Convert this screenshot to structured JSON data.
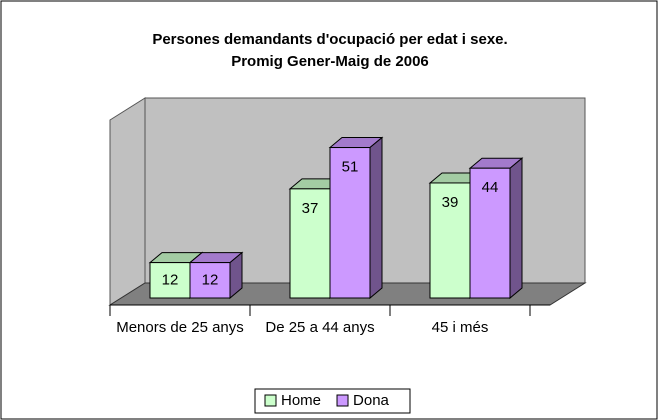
{
  "chart_data": {
    "type": "bar3d",
    "title": "Persones demandants d'ocupació per edat i sexe.",
    "subtitle": "Promig Gener-Maig de 2006",
    "categories": [
      "Menors de 25 anys",
      "De 25 a 44 anys",
      "45 i més"
    ],
    "series": [
      {
        "name": "Home",
        "color": "#ccffcc",
        "values": [
          12,
          37,
          39
        ]
      },
      {
        "name": "Dona",
        "color": "#cc99ff",
        "values": [
          12,
          51,
          44
        ]
      }
    ],
    "legend": "bottom"
  }
}
